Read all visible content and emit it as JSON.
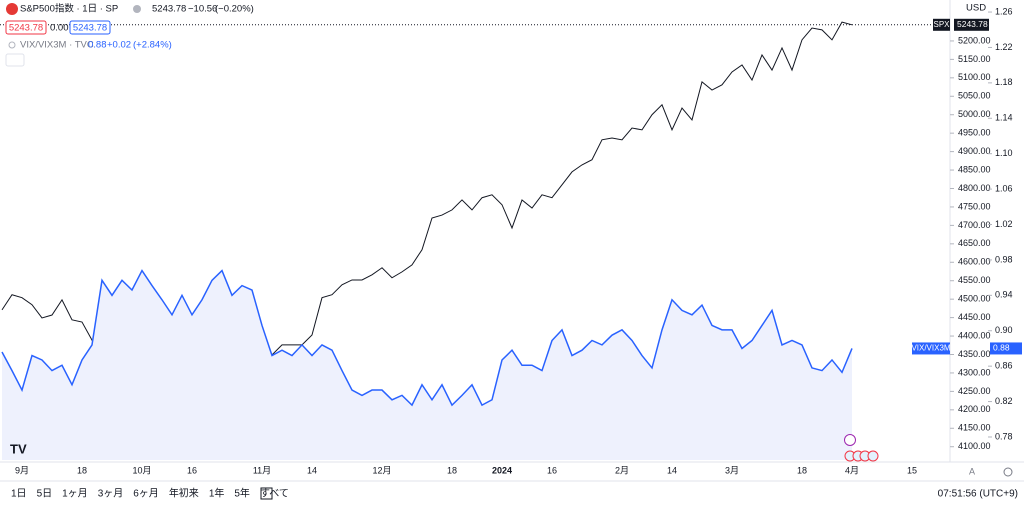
{
  "chart_data": {
    "type": "line",
    "title": "S&P500指数 · 1日 · SP",
    "categories": [
      null,
      null,
      "9月",
      null,
      null,
      null,
      null,
      null,
      "18",
      null,
      null,
      null,
      null,
      null,
      "10月",
      null,
      null,
      null,
      null,
      "16",
      null,
      null,
      null,
      null,
      null,
      null,
      "11月",
      null,
      null,
      null,
      null,
      "14",
      null,
      null,
      null,
      null,
      null,
      null,
      "12月",
      null,
      null,
      null,
      null,
      null,
      null,
      "18",
      null,
      null,
      null,
      null,
      "2024",
      null,
      null,
      null,
      null,
      "16",
      null,
      null,
      null,
      null,
      null,
      null,
      "2月",
      null,
      null,
      null,
      null,
      "14",
      null,
      null,
      null,
      null,
      null,
      "3月",
      null,
      null,
      null,
      null,
      null,
      null,
      "18",
      null,
      null,
      null,
      null,
      "4月",
      null,
      null,
      null,
      null,
      null,
      "15",
      null,
      null
    ],
    "series": [
      {
        "name": "SPX",
        "color": "#131722",
        "values": [
          4471,
          4512,
          4504,
          4485,
          4449,
          4457,
          4498,
          4444,
          4438,
          4389,
          4330,
          4322,
          4276,
          4281,
          4233,
          4268,
          4295,
          4349,
          4376,
          4335,
          4376,
          4295,
          4214,
          4159,
          4124,
          4173,
          4254,
          4349,
          4376,
          4376,
          4376,
          4403,
          4504,
          4512,
          4539,
          4552,
          4552,
          4566,
          4585,
          4558,
          4574,
          4593,
          4634,
          4720,
          4728,
          4742,
          4769,
          4742,
          4775,
          4783,
          4756,
          4693,
          4769,
          4747,
          4783,
          4775,
          4810,
          4845,
          4864,
          4878,
          4932,
          4937,
          4932,
          4964,
          4959,
          5000,
          5027,
          4959,
          5018,
          4986,
          5089,
          5067,
          5081,
          5116,
          5135,
          5094,
          5162,
          5121,
          5181,
          5121,
          5203,
          5235,
          5230,
          5203,
          5251,
          5243.78,
          null,
          null,
          null,
          null,
          null,
          null,
          null,
          null
        ]
      },
      {
        "name": "VIX/VIX3M",
        "color": "#2962ff",
        "axis": "y2",
        "area_color": "#eef1fd",
        "values": [
          0.876,
          0.855,
          0.833,
          0.872,
          0.867,
          0.855,
          0.861,
          0.839,
          0.867,
          0.884,
          0.957,
          0.94,
          0.957,
          0.946,
          0.968,
          0.951,
          0.935,
          0.918,
          0.94,
          0.918,
          0.935,
          0.957,
          0.968,
          0.94,
          0.951,
          0.946,
          0.906,
          0.872,
          0.878,
          0.872,
          0.884,
          0.872,
          0.884,
          0.878,
          0.855,
          0.833,
          0.827,
          0.833,
          0.833,
          0.822,
          0.827,
          0.816,
          0.839,
          0.822,
          0.839,
          0.816,
          0.827,
          0.839,
          0.816,
          0.822,
          0.867,
          0.878,
          0.861,
          0.861,
          0.855,
          0.889,
          0.901,
          0.872,
          0.878,
          0.889,
          0.884,
          0.895,
          0.901,
          0.889,
          0.872,
          0.858,
          0.901,
          0.935,
          0.923,
          0.918,
          0.929,
          0.906,
          0.901,
          0.901,
          0.88,
          0.889,
          0.906,
          0.923,
          0.884,
          0.889,
          0.884,
          0.858,
          0.855,
          0.867,
          0.853,
          0.88,
          null,
          null,
          null,
          null,
          null,
          null,
          null,
          null
        ]
      }
    ],
    "ylim": [
      4064,
      5311
    ],
    "yticks": [
      {
        "value": 4100,
        "label": "4100.00"
      },
      {
        "value": 4150,
        "label": "4150.00"
      },
      {
        "value": 4200,
        "label": "4200.00"
      },
      {
        "value": 4250,
        "label": "4250.00"
      },
      {
        "value": 4300,
        "label": "4300.00"
      },
      {
        "value": 4350,
        "label": "4350.00"
      },
      {
        "value": 4400,
        "label": "4400.00"
      },
      {
        "value": 4450,
        "label": "4450.00"
      },
      {
        "value": 4500,
        "label": "4500.00"
      },
      {
        "value": 4550,
        "label": "4550.00"
      },
      {
        "value": 4600,
        "label": "4600.00"
      },
      {
        "value": 4650,
        "label": "4650.00"
      },
      {
        "value": 4700,
        "label": "4700.00"
      },
      {
        "value": 4750,
        "label": "4750.00"
      },
      {
        "value": 4800,
        "label": "4800.00"
      },
      {
        "value": 4850,
        "label": "4850.00"
      },
      {
        "value": 4900,
        "label": "4900.00"
      },
      {
        "value": 4950,
        "label": "4950.00"
      },
      {
        "value": 5000,
        "label": "5000.00"
      },
      {
        "value": 5050,
        "label": "5050.00"
      },
      {
        "value": 5100,
        "label": "5100.00"
      },
      {
        "value": 5150,
        "label": "5150.00"
      },
      {
        "value": 5200,
        "label": "5200.00"
      }
    ],
    "y2lim": [
      0.754,
      1.2736
    ],
    "y2ticks": [
      0.78,
      0.82,
      0.86,
      {
        "value": 0.9,
        "label": "0.90"
      },
      0.94,
      0.98,
      1.02,
      1.06,
      {
        "value": 1.1,
        "label": "1.10"
      },
      1.14,
      1.18,
      1.22,
      1.26
    ],
    "grid": false
  },
  "header": {
    "price": "5243.78",
    "change": "−10.56",
    "change_pct": "(−0.20%)",
    "bid": "5243.78",
    "spread": "0.00",
    "ask": "5243.78",
    "compare_name": "VIX/VIX3M · TVC",
    "compare_price": "0.88",
    "compare_change": "+0.02",
    "compare_pct": "(+2.84%)",
    "currency": "USD"
  },
  "toolbar": {
    "ranges": [
      "1日",
      "5日",
      "1ヶ月",
      "3ヶ月",
      "6ヶ月",
      "年初来",
      "1年",
      "5年",
      "すべて"
    ],
    "time": "07:51:56 (UTC+9)",
    "auto": "A"
  }
}
